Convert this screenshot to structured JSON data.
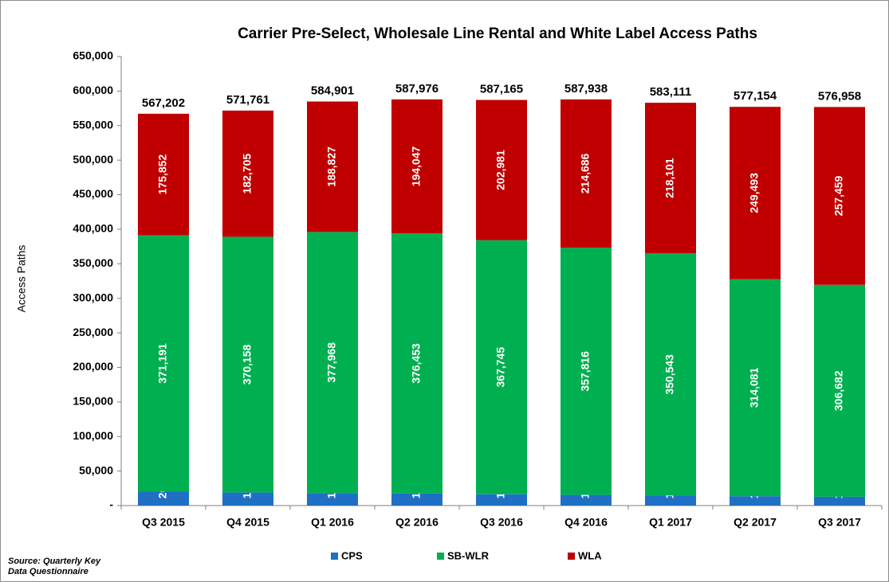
{
  "chart_data": {
    "type": "stacked_bar",
    "title": "Carrier Pre-Select, Wholesale Line Rental and White Label Access Paths",
    "y_label": "Access Paths",
    "source": [
      "Source: Quarterly Key",
      "Data Questionnaire"
    ],
    "categories": [
      "Q3 2015",
      "Q4 2015",
      "Q1 2016",
      "Q2 2016",
      "Q3 2016",
      "Q4 2016",
      "Q1 2017",
      "Q2 2017",
      "Q3 2017"
    ],
    "series": [
      {
        "name": "CPS",
        "color": "#1f6fc5",
        "values": [
          20159,
          18898,
          18106,
          17476,
          16439,
          15436,
          14467,
          13580,
          12817
        ],
        "value_labels": [
          "20,159",
          "18,898",
          "18,106",
          "17,476",
          "16,439",
          "15,436",
          "14,467",
          "13,580",
          "12,817"
        ]
      },
      {
        "name": "SB-WLR",
        "color": "#00b050",
        "values": [
          371191,
          370158,
          377968,
          376453,
          367745,
          357816,
          350543,
          314081,
          306682
        ],
        "value_labels": [
          "371,191",
          "370,158",
          "377,968",
          "376,453",
          "367,745",
          "357,816",
          "350,543",
          "314,081",
          "306,682"
        ]
      },
      {
        "name": "WLA",
        "color": "#c00000",
        "values": [
          175852,
          182705,
          188827,
          194047,
          202981,
          214686,
          218101,
          249493,
          257459
        ],
        "value_labels": [
          "175,852",
          "182,705",
          "188,827",
          "194,047",
          "202,981",
          "214,686",
          "218,101",
          "249,493",
          "257,459"
        ]
      }
    ],
    "totals": {
      "values": [
        567202,
        571761,
        584901,
        587976,
        587165,
        587938,
        583111,
        577154,
        576958
      ],
      "value_labels": [
        "567,202",
        "571,761",
        "584,901",
        "587,976",
        "587,165",
        "587,938",
        "583,111",
        "577,154",
        "576,958"
      ]
    },
    "ylim": [
      0,
      650000
    ],
    "yticks": [
      {
        "value": 0,
        "label": "-"
      },
      {
        "value": 50000,
        "label": "50,000"
      },
      {
        "value": 100000,
        "label": "100,000"
      },
      {
        "value": 150000,
        "label": "150,000"
      },
      {
        "value": 200000,
        "label": "200,000"
      },
      {
        "value": 250000,
        "label": "250,000"
      },
      {
        "value": 300000,
        "label": "300,000"
      },
      {
        "value": 350000,
        "label": "350,000"
      },
      {
        "value": 400000,
        "label": "400,000"
      },
      {
        "value": 450000,
        "label": "450,000"
      },
      {
        "value": 500000,
        "label": "500,000"
      },
      {
        "value": 550000,
        "label": "550,000"
      },
      {
        "value": 600000,
        "label": "600,000"
      },
      {
        "value": 650000,
        "label": "650,000"
      }
    ],
    "grid": false,
    "legend": "bottom"
  }
}
